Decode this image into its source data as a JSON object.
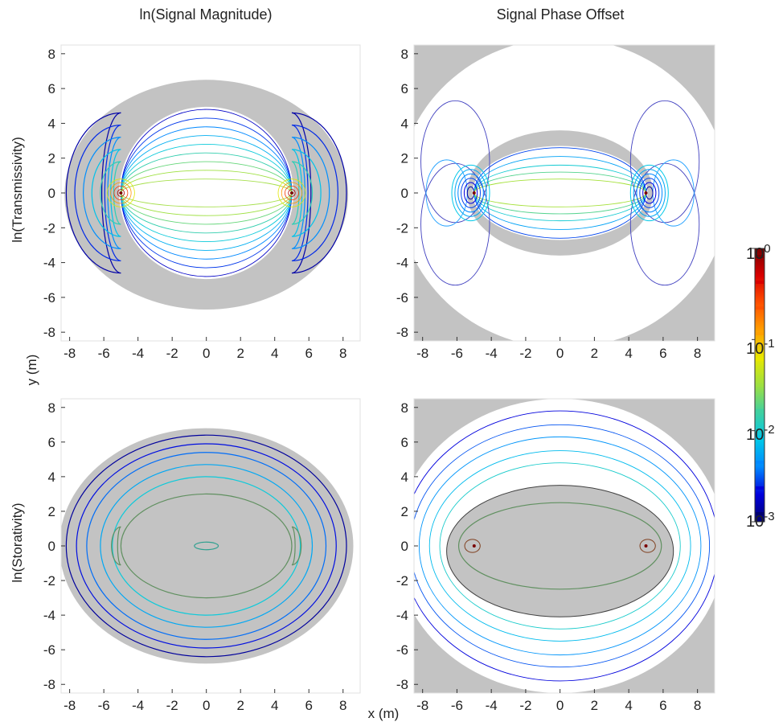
{
  "column_titles": [
    "ln(Signal Magnitude)",
    "Signal Phase Offset"
  ],
  "row_labels": [
    "ln(Transmissivity)",
    "ln(Storativity)"
  ],
  "axis_labels": {
    "x": "x (m)",
    "y": "y (m)"
  },
  "colorbar": {
    "scale": "log",
    "range": [
      0.001,
      1
    ],
    "tick_labels": [
      {
        "base": "10",
        "exp": "0",
        "value": 1
      },
      {
        "base": "10",
        "exp": "-1",
        "value": 0.1
      },
      {
        "base": "10",
        "exp": "-2",
        "value": 0.01
      },
      {
        "base": "10",
        "exp": "-3",
        "value": 0.001
      }
    ],
    "stops": [
      "#7a0000",
      "#d90000",
      "#ff5000",
      "#ffa000",
      "#e8e800",
      "#9ee040",
      "#40d0a0",
      "#00c8e8",
      "#0088ff",
      "#0000dd",
      "#000070"
    ]
  },
  "colors": {
    "negative_region": "#c3c3c3",
    "positive_region": "#ffffff"
  },
  "chart_data": [
    {
      "type": "contour",
      "panel": "top-left",
      "xlim": [
        -8.5,
        9
      ],
      "ylim": [
        -8.5,
        8.5
      ],
      "xticks": [
        -8,
        -6,
        -4,
        -2,
        0,
        2,
        4,
        6,
        8
      ],
      "yticks": [
        -8,
        -6,
        -4,
        -2,
        0,
        2,
        4,
        6,
        8
      ],
      "sources": [
        [
          -5,
          0
        ],
        [
          5,
          0
        ]
      ]
    },
    {
      "type": "contour",
      "panel": "top-right",
      "xlim": [
        -8.5,
        9
      ],
      "ylim": [
        -8.5,
        8.5
      ],
      "xticks": [
        -8,
        -6,
        -4,
        -2,
        0,
        2,
        4,
        6,
        8
      ],
      "yticks": [
        -8,
        -6,
        -4,
        -2,
        0,
        2,
        4,
        6,
        8
      ],
      "sources": [
        [
          -5,
          0
        ],
        [
          5,
          0
        ]
      ]
    },
    {
      "type": "contour",
      "panel": "bottom-left",
      "xlim": [
        -8.5,
        9
      ],
      "ylim": [
        -8.5,
        8.5
      ],
      "xticks": [
        -8,
        -6,
        -4,
        -2,
        0,
        2,
        4,
        6,
        8
      ],
      "yticks": [
        -8,
        -6,
        -4,
        -2,
        0,
        2,
        4,
        6,
        8
      ],
      "sources": [
        [
          -5,
          0
        ],
        [
          5,
          0
        ]
      ]
    },
    {
      "type": "contour",
      "panel": "bottom-right",
      "xlim": [
        -8.5,
        9
      ],
      "ylim": [
        -8.5,
        8.5
      ],
      "xticks": [
        -8,
        -6,
        -4,
        -2,
        0,
        2,
        4,
        6,
        8
      ],
      "yticks": [
        -8,
        -6,
        -4,
        -2,
        0,
        2,
        4,
        6,
        8
      ],
      "sources": [
        [
          -5,
          0
        ],
        [
          5,
          0
        ]
      ]
    }
  ]
}
